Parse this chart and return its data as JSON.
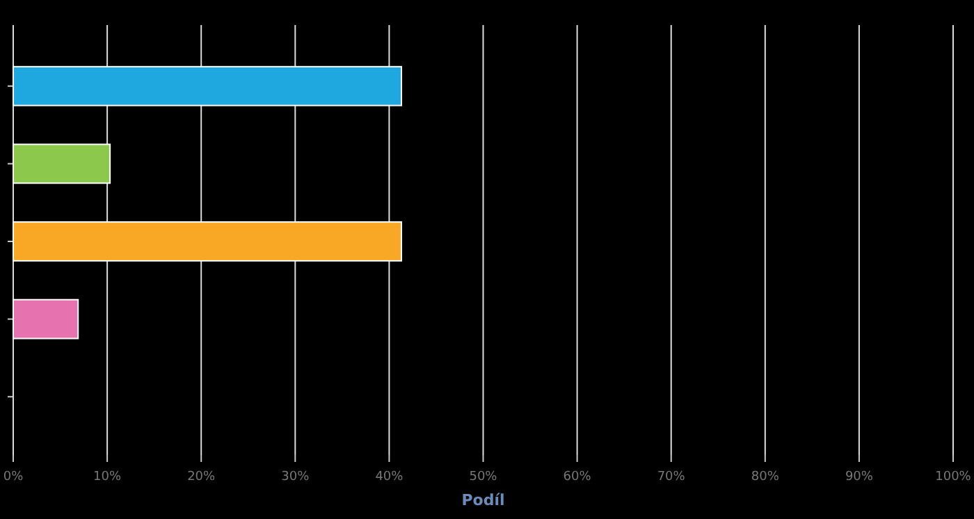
{
  "chart_data": {
    "type": "bar",
    "orientation": "horizontal",
    "xlabel": "Podíl",
    "categories": [
      null,
      null,
      null,
      null,
      null
    ],
    "values": [
      41.3,
      10.3,
      41.3,
      6.9,
      0
    ],
    "colors": [
      "#1fa8e0",
      "#8cc84b",
      "#f9a825",
      "#e673b0",
      "#888888"
    ],
    "xlim": [
      0,
      100
    ],
    "xticks": [
      {
        "value": 0,
        "label": "0%"
      },
      {
        "value": 10,
        "label": "10%"
      },
      {
        "value": 20,
        "label": "20%"
      },
      {
        "value": 30,
        "label": "30%"
      },
      {
        "value": 40,
        "label": "40%"
      },
      {
        "value": 50,
        "label": "50%"
      },
      {
        "value": 60,
        "label": "60%"
      },
      {
        "value": 70,
        "label": "70%"
      },
      {
        "value": 80,
        "label": "80%"
      },
      {
        "value": 90,
        "label": "90%"
      },
      {
        "value": 100,
        "label": "100%"
      }
    ],
    "grid": "x"
  }
}
